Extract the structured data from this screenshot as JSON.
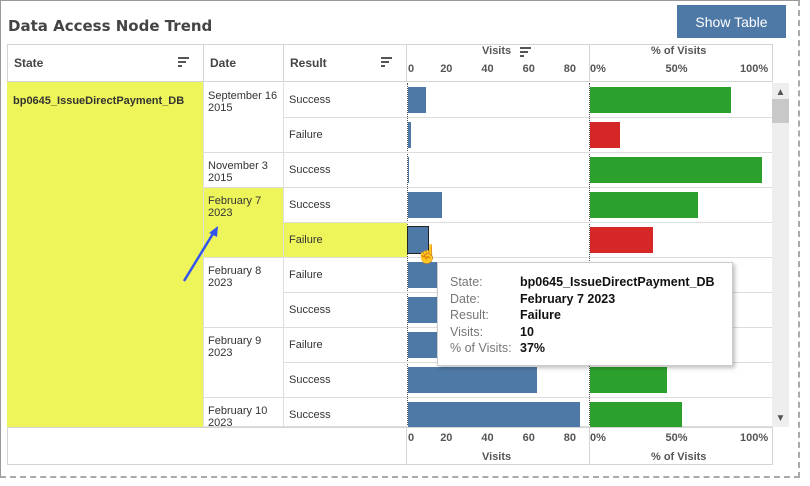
{
  "title": "Data Access Node Trend",
  "show_table_label": "Show Table",
  "headers": {
    "state": "State",
    "date": "Date",
    "result": "Result",
    "visits": "Visits",
    "pct": "% of Visits"
  },
  "visits_ticks": [
    "0",
    "20",
    "40",
    "60",
    "80"
  ],
  "pct_ticks": [
    "0%",
    "50%",
    "100%"
  ],
  "state": "bp0645_IssueDirectPayment_DB",
  "colors": {
    "visits": "#4e79a7",
    "success": "#2ca02c",
    "failure": "#d62728",
    "highlight": "#eef55a"
  },
  "groups": [
    {
      "date": "September 16 2015",
      "rows": [
        {
          "result": "Success",
          "visits": 9,
          "pct": 82
        },
        {
          "result": "Failure",
          "visits": 2,
          "pct": 18
        }
      ]
    },
    {
      "date": "November 3 2015",
      "rows": [
        {
          "result": "Success",
          "visits": 1,
          "pct": 100
        }
      ]
    },
    {
      "date": "February 7 2023",
      "highlight": true,
      "rows": [
        {
          "result": "Success",
          "visits": 17,
          "pct": 63
        },
        {
          "result": "Failure",
          "visits": 10,
          "pct": 37,
          "highlight": true
        }
      ]
    },
    {
      "date": "February 8 2023",
      "rows": [
        {
          "result": "Failure",
          "visits": 20,
          "pct": 40
        },
        {
          "result": "Success",
          "visits": 30,
          "pct": 60
        }
      ]
    },
    {
      "date": "February 9 2023",
      "rows": [
        {
          "result": "Failure",
          "visits": 75,
          "pct": 55
        },
        {
          "result": "Success",
          "visits": 63,
          "pct": 45
        }
      ]
    },
    {
      "date": "February 10 2023",
      "rows": [
        {
          "result": "Success",
          "visits": 84,
          "pct": 54
        }
      ]
    }
  ],
  "tooltip": {
    "rows": [
      {
        "k": "State:",
        "v": "bp0645_IssueDirectPayment_DB"
      },
      {
        "k": "Date:",
        "v": "February 7 2023"
      },
      {
        "k": "Result:",
        "v": "Failure"
      },
      {
        "k": "Visits:",
        "v": "10"
      },
      {
        "k": "% of Visits:",
        "v": "37%"
      }
    ]
  }
}
